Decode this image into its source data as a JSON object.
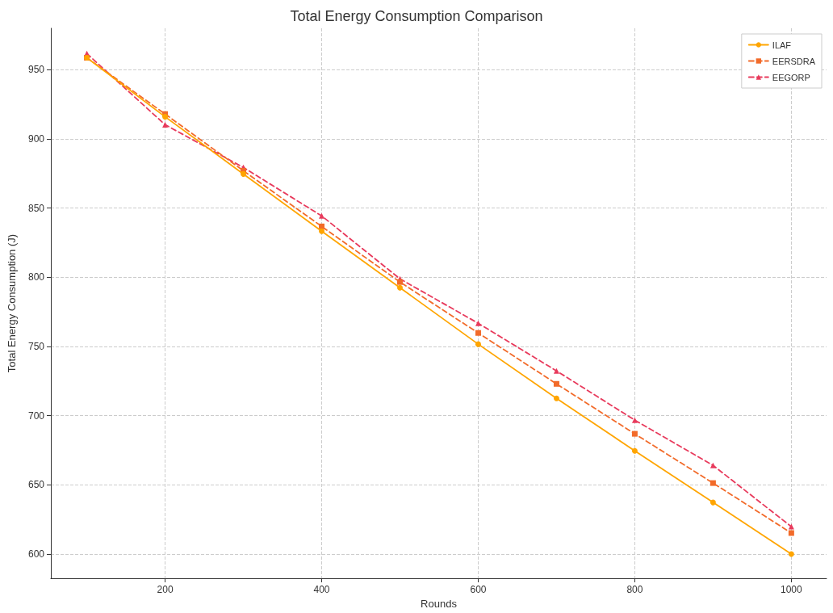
{
  "chart_data": {
    "type": "line",
    "title": "Total Energy Consumption Comparison",
    "xlabel": "Rounds",
    "ylabel": "Total Energy Consumption (J)",
    "x": [
      100,
      200,
      300,
      400,
      500,
      600,
      700,
      800,
      900,
      1000
    ],
    "series": [
      {
        "name": "ILAF",
        "color": "#ffa500",
        "marker": "circle",
        "line_style": "solid",
        "values": [
          958.7,
          916,
          874.7,
          833.3,
          792.5,
          751.7,
          712.5,
          674.6,
          637.3,
          600
        ]
      },
      {
        "name": "EERSDRA",
        "color": "#f26b2a",
        "marker": "square",
        "line_style": "dashed",
        "values": [
          958.7,
          918,
          877,
          836.8,
          796.6,
          759.8,
          723,
          686.9,
          651.3,
          615.2
        ]
      },
      {
        "name": "EEGORP",
        "color": "#e83a5c",
        "marker": "triangle",
        "line_style": "dashed",
        "values": [
          961.7,
          910.3,
          879.4,
          844.4,
          798.9,
          766.8,
          732.4,
          696.8,
          664.1,
          619.8
        ]
      }
    ],
    "xlim": [
      54,
      1045
    ],
    "xticks": [
      200,
      400,
      600,
      800,
      1000
    ],
    "ylim": [
      582.5,
      980
    ],
    "yticks": [
      600,
      650,
      700,
      750,
      800,
      850,
      900,
      950
    ],
    "grid": true,
    "legend": "top right"
  }
}
